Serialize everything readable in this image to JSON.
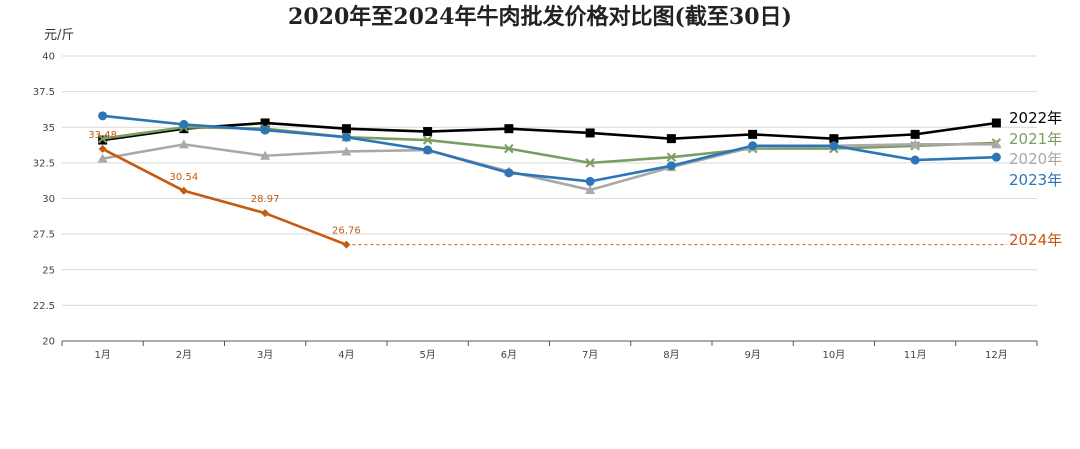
{
  "chart_data": {
    "type": "line",
    "title": "2020年至2024年牛肉批发价格对比图(截至30日)",
    "unit_label": "元/斤",
    "categories": [
      "1月",
      "2月",
      "3月",
      "4月",
      "5月",
      "6月",
      "7月",
      "8月",
      "9月",
      "10月",
      "11月",
      "12月"
    ],
    "ylim": [
      20,
      40
    ],
    "yticks": [
      20,
      22.5,
      25,
      27.5,
      30,
      32.5,
      35,
      37.5,
      40
    ],
    "grid": "horizontal",
    "legend_placement": "right, at line ends",
    "series": [
      {
        "name": "2022年",
        "color": "#000000",
        "marker": "square",
        "values": [
          34.1,
          34.9,
          35.3,
          34.9,
          34.7,
          34.9,
          34.6,
          34.2,
          34.5,
          34.2,
          34.5,
          35.3
        ]
      },
      {
        "name": "2021年",
        "color": "#7a9e62",
        "marker": "x",
        "values": [
          34.2,
          35.0,
          34.9,
          34.3,
          34.1,
          33.5,
          32.5,
          32.9,
          33.5,
          33.5,
          33.7,
          33.9
        ]
      },
      {
        "name": "2020年",
        "color": "#a9a9a9",
        "marker": "triangle",
        "values": [
          32.8,
          33.8,
          33.0,
          33.3,
          33.4,
          31.9,
          30.6,
          32.2,
          33.6,
          33.7,
          33.8,
          33.8
        ]
      },
      {
        "name": "2023年",
        "color": "#2e75b6",
        "marker": "circle",
        "values": [
          35.8,
          35.2,
          34.8,
          34.3,
          33.4,
          31.8,
          31.2,
          32.3,
          33.7,
          33.7,
          32.7,
          32.9
        ]
      },
      {
        "name": "2024年",
        "color": "#c55a11",
        "marker": "diamond",
        "values": [
          33.48,
          30.54,
          28.97,
          26.76,
          null,
          null,
          null,
          null,
          null,
          null,
          null,
          null
        ],
        "data_labels": [
          "33.48",
          "30.54",
          "28.97",
          "26.76"
        ],
        "extend_dashed_to_end": true
      }
    ]
  }
}
